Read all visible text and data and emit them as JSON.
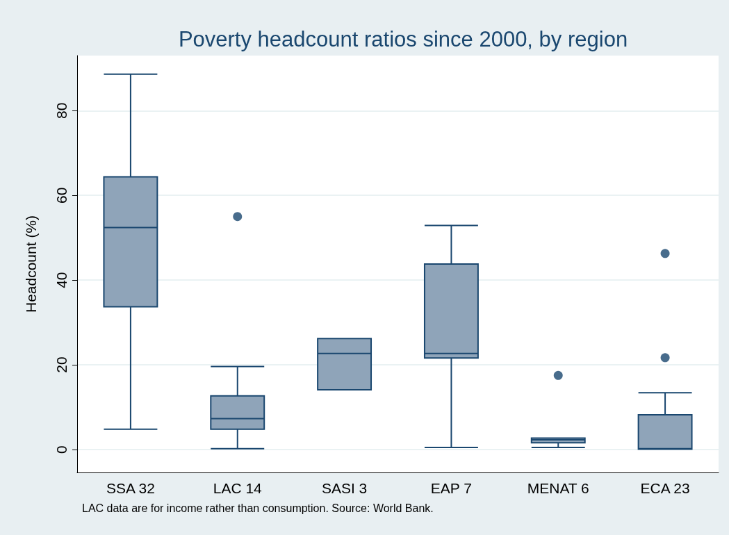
{
  "chart_data": {
    "type": "box",
    "title": "Poverty headcount ratios since 2000, by region",
    "ylabel": "Headcount (%)",
    "categories": [
      "SSA 32",
      "LAC 14",
      "SASI 3",
      "EAP 7",
      "MENAT 6",
      "ECA 23"
    ],
    "boxes": [
      {
        "low": 4.8,
        "q1": 33.7,
        "median": 52.4,
        "q3": 64.4,
        "high": 88.6
      },
      {
        "low": 0.2,
        "q1": 4.8,
        "median": 7.3,
        "q3": 12.7,
        "high": 19.6,
        "outliers": [
          55.0
        ]
      },
      {
        "low": 14.1,
        "q1": 14.1,
        "median": 22.7,
        "q3": 26.2,
        "high": 26.2
      },
      {
        "low": 0.5,
        "q1": 21.6,
        "median": 22.7,
        "q3": 43.8,
        "high": 52.9
      },
      {
        "low": 0.5,
        "q1": 1.6,
        "median": 2.3,
        "q3": 2.7,
        "high": 2.7,
        "outliers": [
          17.5
        ]
      },
      {
        "low": 0.1,
        "q1": 0.1,
        "median": 0.2,
        "q3": 8.2,
        "high": 13.4,
        "outliers": [
          21.7,
          46.3
        ]
      }
    ],
    "color": "#8fa4b9",
    "ylim": [
      -5.4,
      93
    ],
    "yticks": [
      0,
      20,
      40,
      60,
      80
    ],
    "grid": "y",
    "annotations": [
      "LAC data are for income rather than consumption. Source: World Bank."
    ]
  }
}
